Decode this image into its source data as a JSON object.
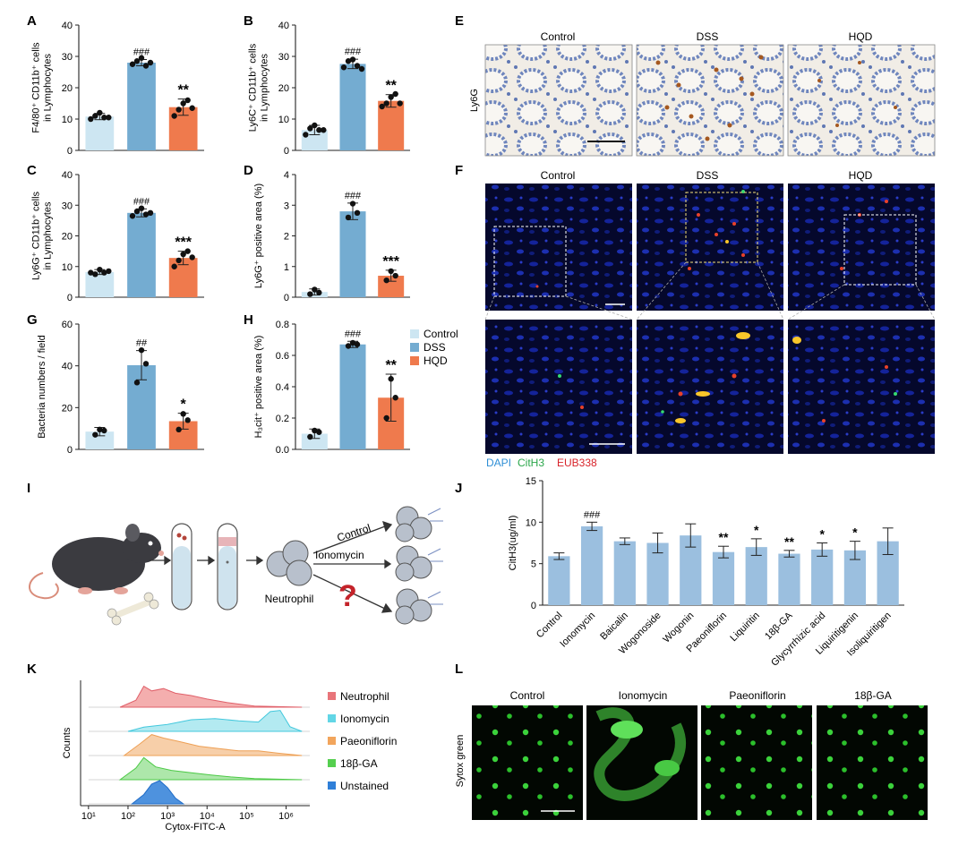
{
  "colors": {
    "control": "#cde6f2",
    "dss": "#74acd1",
    "hqd": "#ef7a4d",
    "jbar": "#9bbfdf",
    "dapi": "#2f8fd6",
    "cith3": "#2aa64a",
    "eub": "#d8232a",
    "neutrophil": "#f2a0a0",
    "ionomycin": "#a6e6ef",
    "paeoniflorin": "#f6c79a",
    "ga": "#9fe39b",
    "unstained": "#2f7fd8"
  },
  "labels": {
    "A": "A",
    "B": "B",
    "C": "C",
    "D": "D",
    "E": "E",
    "F": "F",
    "G": "G",
    "H": "H",
    "I": "I",
    "J": "J",
    "K": "K",
    "L": "L"
  },
  "chart_data": [
    {
      "panel": "A",
      "type": "bar",
      "categories": [
        "Control",
        "DSS",
        "HQD"
      ],
      "values": [
        10.8,
        28.0,
        13.8
      ],
      "errors": [
        1.0,
        1.0,
        2.6
      ],
      "points": [
        [
          10,
          11,
          12,
          10.5,
          10.5
        ],
        [
          27.5,
          28.5,
          29.5,
          27,
          28
        ],
        [
          11,
          13,
          15,
          16,
          13.5
        ]
      ],
      "ylabel": [
        "F4/80⁺ CD11b⁺ cells",
        "in Lymphocytes"
      ],
      "ylim": [
        0,
        40
      ],
      "ticks": [
        "0",
        "10",
        "20",
        "30",
        "40"
      ],
      "tick_values": [
        0,
        10,
        20,
        30,
        40
      ],
      "sig": [
        "",
        "###",
        "**"
      ]
    },
    {
      "panel": "B",
      "type": "bar",
      "categories": [
        "Control",
        "DSS",
        "HQD"
      ],
      "values": [
        6.5,
        27.6,
        15.8
      ],
      "errors": [
        1.5,
        1.5,
        2.0
      ],
      "points": [
        [
          5,
          7,
          8,
          6.5,
          6.5
        ],
        [
          26.5,
          28.5,
          29,
          27,
          26
        ],
        [
          14,
          15,
          17,
          18,
          15
        ]
      ],
      "ylabel": [
        "Ly6C⁺ CD11b⁺ cells",
        "in Lymphocytes"
      ],
      "ylim": [
        0,
        40
      ],
      "ticks": [
        "0",
        "10",
        "20",
        "30",
        "40"
      ],
      "tick_values": [
        0,
        10,
        20,
        30,
        40
      ],
      "sig": [
        "",
        "###",
        "**"
      ]
    },
    {
      "panel": "C",
      "type": "bar",
      "categories": [
        "Control",
        "DSS",
        "HQD"
      ],
      "values": [
        8.2,
        27.5,
        12.8
      ],
      "errors": [
        0.8,
        1.3,
        2.2
      ],
      "points": [
        [
          8,
          7.5,
          9,
          8,
          8.5
        ],
        [
          26.5,
          28,
          29,
          27,
          27.5
        ],
        [
          10,
          12,
          14,
          15,
          13
        ]
      ],
      "ylabel": [
        "Ly6G⁺ CD11b⁺ cells",
        "in Lymphocytes"
      ],
      "ylim": [
        0,
        40
      ],
      "ticks": [
        "0",
        "10",
        "20",
        "30",
        "40"
      ],
      "tick_values": [
        0,
        10,
        20,
        30,
        40
      ],
      "sig": [
        "",
        "###",
        "***"
      ]
    },
    {
      "panel": "D",
      "type": "bar",
      "categories": [
        "Control",
        "DSS",
        "HQD"
      ],
      "values": [
        0.17,
        2.8,
        0.7
      ],
      "errors": [
        0.1,
        0.27,
        0.18
      ],
      "points": [
        [
          0.1,
          0.25,
          0.15
        ],
        [
          2.6,
          3.05,
          2.75
        ],
        [
          0.55,
          0.85,
          0.7
        ]
      ],
      "ylabel": [
        "Ly6G⁺ positive area (%)"
      ],
      "ylim": [
        0,
        4
      ],
      "ticks": [
        "0",
        "1",
        "2",
        "3",
        "4"
      ],
      "tick_values": [
        0,
        1,
        2,
        3,
        4
      ],
      "sig": [
        "",
        "###",
        "***"
      ]
    },
    {
      "panel": "G",
      "type": "bar",
      "categories": [
        "Control",
        "DSS",
        "HQD"
      ],
      "values": [
        8.5,
        40.3,
        13.5
      ],
      "errors": [
        2.0,
        7.0,
        3.8
      ],
      "points": [
        [
          7,
          9.5,
          9
        ],
        [
          32,
          47.5,
          41
        ],
        [
          9.5,
          17,
          14
        ]
      ],
      "ylabel": [
        "Bacteria numbers / field"
      ],
      "ylim": [
        0,
        60
      ],
      "ticks": [
        "0",
        "20",
        "40",
        "60"
      ],
      "tick_values": [
        0,
        20,
        40,
        60
      ],
      "sig": [
        "",
        "##",
        "*"
      ]
    },
    {
      "panel": "H",
      "type": "bar",
      "categories": [
        "Control",
        "DSS",
        "HQD"
      ],
      "values": [
        0.1,
        0.67,
        0.33
      ],
      "errors": [
        0.03,
        0.02,
        0.15
      ],
      "points": [
        [
          0.08,
          0.12,
          0.11
        ],
        [
          0.66,
          0.68,
          0.67
        ],
        [
          0.2,
          0.45,
          0.33
        ]
      ],
      "ylabel": [
        "H₃cit⁺ positive area (%)"
      ],
      "ylim": [
        0,
        0.8
      ],
      "ticks": [
        "0.0",
        "0.2",
        "0.4",
        "0.6",
        "0.8"
      ],
      "tick_values": [
        0,
        0.2,
        0.4,
        0.6,
        0.8
      ],
      "sig": [
        "",
        "###",
        "**"
      ]
    },
    {
      "panel": "J",
      "type": "bar",
      "categories": [
        "Control",
        "Ionomycin",
        "Baicalin",
        "Wogonoside",
        "Wogonin",
        "Paeoniflorin",
        "Liquiritin",
        "18β-GA",
        "Glycyrrhizic acid",
        "Liquiritigenin",
        "Isoliquiritigen"
      ],
      "values": [
        5.9,
        9.5,
        7.7,
        7.5,
        8.4,
        6.4,
        7.0,
        6.2,
        6.7,
        6.6,
        7.7
      ],
      "errors": [
        0.4,
        0.5,
        0.4,
        1.2,
        1.4,
        0.7,
        1.0,
        0.4,
        0.8,
        1.1,
        1.6
      ],
      "ylabel": [
        "CitH3(ug/ml)"
      ],
      "ylim": [
        0,
        15
      ],
      "ticks": [
        "0",
        "5",
        "10",
        "15"
      ],
      "tick_values": [
        0,
        5,
        10,
        15
      ],
      "sig": [
        "",
        "###",
        "",
        "",
        "",
        "**",
        "*",
        "**",
        "*",
        "*",
        ""
      ]
    }
  ],
  "legendH": {
    "items": [
      "Control",
      "DSS",
      "HQD"
    ]
  },
  "panelE": {
    "titles": [
      "Control",
      "DSS",
      "HQD"
    ],
    "side_label": "Ly6G"
  },
  "panelF": {
    "titles": [
      "Control",
      "DSS",
      "HQD"
    ],
    "legend": [
      "DAPI",
      "CitH3",
      "EUB338"
    ]
  },
  "panelI": {
    "arrows": [
      "Control",
      "Ionomycin"
    ],
    "neutrophil_label": "Neutrophil",
    "question": "?"
  },
  "panelK": {
    "type": "histogram",
    "series": [
      "Neutrophil",
      "Ionomycin",
      "Paeoniflorin",
      "18β-GA",
      "Unstained"
    ],
    "ylabel": "Counts",
    "xlabel": "Cytox-FITC-A",
    "xticks": [
      "10¹",
      "10²",
      "10³",
      "10⁴",
      "10⁵",
      "10⁶"
    ],
    "xtick_values": [
      1,
      2,
      3,
      4,
      5,
      6
    ],
    "xlim": [
      0.8,
      6.6
    ]
  },
  "panelL": {
    "titles": [
      "Control",
      "Ionomycin",
      "Paeoniflorin",
      "18β-GA"
    ],
    "side_label": "Sytox green"
  }
}
